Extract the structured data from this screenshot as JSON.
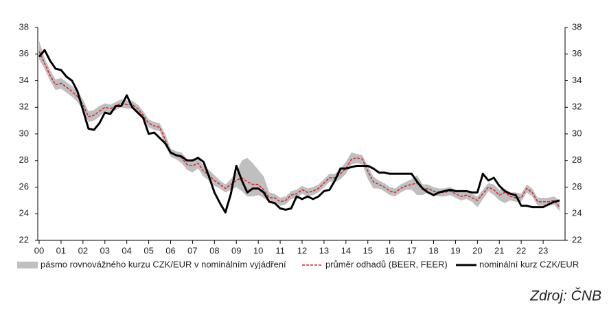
{
  "chart_data": {
    "type": "line",
    "x": [
      2000,
      2000.25,
      2000.5,
      2000.75,
      2001,
      2001.25,
      2001.5,
      2001.75,
      2002,
      2002.25,
      2002.5,
      2002.75,
      2003,
      2003.25,
      2003.5,
      2003.75,
      2004,
      2004.25,
      2004.5,
      2004.75,
      2005,
      2005.25,
      2005.5,
      2005.75,
      2006,
      2006.25,
      2006.5,
      2006.75,
      2007,
      2007.25,
      2007.5,
      2007.75,
      2008,
      2008.25,
      2008.5,
      2008.75,
      2009,
      2009.25,
      2009.5,
      2009.75,
      2010,
      2010.25,
      2010.5,
      2010.75,
      2011,
      2011.25,
      2011.5,
      2011.75,
      2012,
      2012.25,
      2012.5,
      2012.75,
      2013,
      2013.25,
      2013.5,
      2013.75,
      2014,
      2014.25,
      2014.5,
      2014.75,
      2015,
      2015.25,
      2015.5,
      2015.75,
      2016,
      2016.25,
      2016.5,
      2016.75,
      2017,
      2017.25,
      2017.5,
      2017.75,
      2018,
      2018.25,
      2018.5,
      2018.75,
      2019,
      2019.25,
      2019.5,
      2019.75,
      2020,
      2020.25,
      2020.5,
      2020.75,
      2021,
      2021.25,
      2021.5,
      2021.75,
      2022,
      2022.25,
      2022.5,
      2022.75,
      2023,
      2023.25,
      2023.5,
      2023.75
    ],
    "series": [
      {
        "name": "pásmo rovnovážného kurzu CZK/EUR v nominálním vyjádření",
        "color": "#bfbfbf",
        "high": [
          37.0,
          35.7,
          34.8,
          34.1,
          34.2,
          33.9,
          33.6,
          33.2,
          32.6,
          31.7,
          31.8,
          32.1,
          32.3,
          32.2,
          32.4,
          32.6,
          32.5,
          32.5,
          32.2,
          31.7,
          31.1,
          30.9,
          30.8,
          30.0,
          28.9,
          28.7,
          28.6,
          28.1,
          28.0,
          28.2,
          27.6,
          27.3,
          26.9,
          26.5,
          26.2,
          26.6,
          27.1,
          28.0,
          28.2,
          27.8,
          27.3,
          26.8,
          25.6,
          25.5,
          25.2,
          25.3,
          25.7,
          25.8,
          26.1,
          25.9,
          26.0,
          26.2,
          26.6,
          27.0,
          27.0,
          27.4,
          27.9,
          28.6,
          28.5,
          28.4,
          27.6,
          26.8,
          26.5,
          26.3,
          26.0,
          25.9,
          26.2,
          26.4,
          26.6,
          26.9,
          26.2,
          26.2,
          26.0,
          25.9,
          25.9,
          26.0,
          25.8,
          25.6,
          25.7,
          25.5,
          25.3,
          25.8,
          26.3,
          26.2,
          25.8,
          25.9,
          25.6,
          25.6,
          25.5,
          26.2,
          25.9,
          25.2,
          25.2,
          25.2,
          25.3,
          25.0
        ],
        "low": [
          35.6,
          34.9,
          34.0,
          33.3,
          33.4,
          33.1,
          32.8,
          32.4,
          31.8,
          30.9,
          31.0,
          31.3,
          31.7,
          31.6,
          31.8,
          32.0,
          31.9,
          31.9,
          31.6,
          31.1,
          30.5,
          30.3,
          30.2,
          29.2,
          28.3,
          28.1,
          27.8,
          27.3,
          27.1,
          27.4,
          26.8,
          26.5,
          26.1,
          25.9,
          25.6,
          25.8,
          26.0,
          25.7,
          25.3,
          25.3,
          25.4,
          25.2,
          24.9,
          24.9,
          24.6,
          24.7,
          25.1,
          25.2,
          25.5,
          25.3,
          25.4,
          25.6,
          26.0,
          26.4,
          26.4,
          26.6,
          27.0,
          27.7,
          27.8,
          27.7,
          26.6,
          25.9,
          25.9,
          25.7,
          25.4,
          25.3,
          25.6,
          25.8,
          25.8,
          25.4,
          25.4,
          25.6,
          25.4,
          25.3,
          25.3,
          25.4,
          25.2,
          25.0,
          25.1,
          24.9,
          24.5,
          25.1,
          25.7,
          25.4,
          25.0,
          24.8,
          25.0,
          24.9,
          24.9,
          25.6,
          25.3,
          24.6,
          24.6,
          24.6,
          24.7,
          24.2
        ]
      },
      {
        "name": "průměr odhadů (BEER, FEER)",
        "color": "#e02020",
        "dashed": true,
        "values": [
          36.2,
          35.3,
          34.4,
          33.7,
          33.8,
          33.5,
          33.2,
          32.8,
          32.2,
          31.3,
          31.4,
          31.7,
          32.0,
          31.9,
          32.1,
          32.3,
          32.2,
          32.2,
          31.9,
          31.4,
          30.8,
          30.6,
          30.5,
          29.6,
          28.6,
          28.4,
          28.2,
          27.7,
          27.6,
          27.8,
          27.2,
          26.9,
          26.5,
          26.2,
          25.9,
          26.2,
          26.5,
          26.7,
          26.4,
          26.2,
          26.2,
          25.8,
          25.2,
          25.2,
          24.9,
          25.0,
          25.4,
          25.5,
          25.8,
          25.6,
          25.7,
          25.9,
          26.3,
          26.7,
          26.7,
          27.0,
          27.4,
          28.1,
          28.2,
          28.1,
          27.2,
          26.4,
          26.2,
          26.0,
          25.7,
          25.6,
          25.9,
          26.1,
          26.2,
          26.3,
          25.8,
          25.9,
          25.7,
          25.6,
          25.6,
          25.7,
          25.5,
          25.3,
          25.4,
          25.2,
          25.0,
          25.5,
          26.0,
          25.8,
          25.4,
          25.6,
          25.3,
          25.2,
          25.2,
          25.9,
          25.6,
          24.9,
          24.9,
          24.9,
          25.0,
          24.5
        ]
      },
      {
        "name": "nominální kurz CZK/EUR",
        "color": "#000000",
        "values": [
          35.8,
          36.3,
          35.5,
          34.9,
          34.8,
          34.3,
          34.0,
          33.2,
          31.8,
          30.4,
          30.3,
          30.8,
          31.6,
          31.5,
          32.1,
          32.1,
          32.9,
          32.0,
          31.6,
          31.2,
          30.0,
          30.1,
          29.7,
          29.3,
          28.6,
          28.4,
          28.3,
          28.0,
          28.0,
          28.2,
          27.9,
          26.8,
          25.6,
          24.8,
          24.1,
          25.5,
          27.6,
          26.5,
          25.6,
          25.9,
          25.9,
          25.6,
          24.9,
          24.8,
          24.4,
          24.3,
          24.4,
          25.3,
          25.1,
          25.3,
          25.1,
          25.3,
          25.7,
          25.8,
          26.5,
          27.4,
          27.4,
          27.5,
          27.6,
          27.6,
          27.6,
          27.4,
          27.1,
          27.1,
          27.0,
          27.0,
          27.0,
          27.0,
          27.0,
          26.4,
          25.9,
          25.6,
          25.4,
          25.6,
          25.7,
          25.8,
          25.7,
          25.7,
          25.7,
          25.6,
          25.6,
          27.0,
          26.5,
          26.7,
          26.1,
          25.7,
          25.5,
          25.4,
          24.6,
          24.6,
          24.5,
          24.5,
          24.5,
          24.7,
          24.9,
          25.0
        ]
      }
    ],
    "xlim": [
      2000,
      2024
    ],
    "xticks": [
      {
        "value": 2000,
        "label": "00"
      },
      {
        "value": 2001,
        "label": "01"
      },
      {
        "value": 2002,
        "label": "02"
      },
      {
        "value": 2003,
        "label": "03"
      },
      {
        "value": 2004,
        "label": "04"
      },
      {
        "value": 2005,
        "label": "05"
      },
      {
        "value": 2006,
        "label": "06"
      },
      {
        "value": 2007,
        "label": "07"
      },
      {
        "value": 2008,
        "label": "08"
      },
      {
        "value": 2009,
        "label": "09"
      },
      {
        "value": 2010,
        "label": "10"
      },
      {
        "value": 2011,
        "label": "11"
      },
      {
        "value": 2012,
        "label": "12"
      },
      {
        "value": 2013,
        "label": "13"
      },
      {
        "value": 2014,
        "label": "14"
      },
      {
        "value": 2015,
        "label": "15"
      },
      {
        "value": 2016,
        "label": "16"
      },
      {
        "value": 2017,
        "label": "17"
      },
      {
        "value": 2018,
        "label": "18"
      },
      {
        "value": 2019,
        "label": "19"
      },
      {
        "value": 2020,
        "label": "20"
      },
      {
        "value": 2021,
        "label": "21"
      },
      {
        "value": 2022,
        "label": "22"
      },
      {
        "value": 2023,
        "label": "23"
      }
    ],
    "ylim": [
      22,
      38
    ],
    "yticks": [
      22,
      24,
      26,
      28,
      30,
      32,
      34,
      36,
      38
    ],
    "y2lim": [
      22,
      38
    ],
    "y2ticks": [
      22,
      24,
      26,
      28,
      30,
      32,
      34,
      36,
      38
    ],
    "legend": "bottom",
    "source": "Zdroj: ČNB"
  }
}
